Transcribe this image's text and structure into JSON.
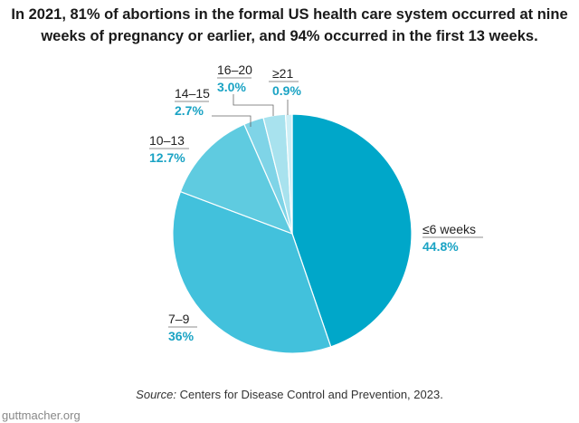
{
  "title": "In 2021, 81% of abortions in the formal US health care system occurred at nine weeks of pregnancy or earlier, and 94% occurred in the first 13 weeks.",
  "chart_data": {
    "type": "pie",
    "start": "top",
    "direction": "clockwise",
    "slices": [
      {
        "label": "≤6 weeks",
        "value": 44.8,
        "display": "44.8%",
        "color": "#00a7c9"
      },
      {
        "label": "7–9",
        "value": 36,
        "display": "36%",
        "color": "#42c1dc"
      },
      {
        "label": "10–13",
        "value": 12.7,
        "display": "12.7%",
        "color": "#5fcbe0"
      },
      {
        "label": "14–15",
        "value": 2.7,
        "display": "2.7%",
        "color": "#7fd4e7"
      },
      {
        "label": "16–20",
        "value": 3.0,
        "display": "3.0%",
        "color": "#a8e2ee"
      },
      {
        "label": "≥21",
        "value": 0.9,
        "display": "0.9%",
        "color": "#cdeff6"
      }
    ],
    "label_color": "#1aa3c4"
  },
  "source_prefix": "Source:",
  "source_text": " Centers for Disease Control and Prevention, 2023.",
  "brand": "guttmacher.org"
}
